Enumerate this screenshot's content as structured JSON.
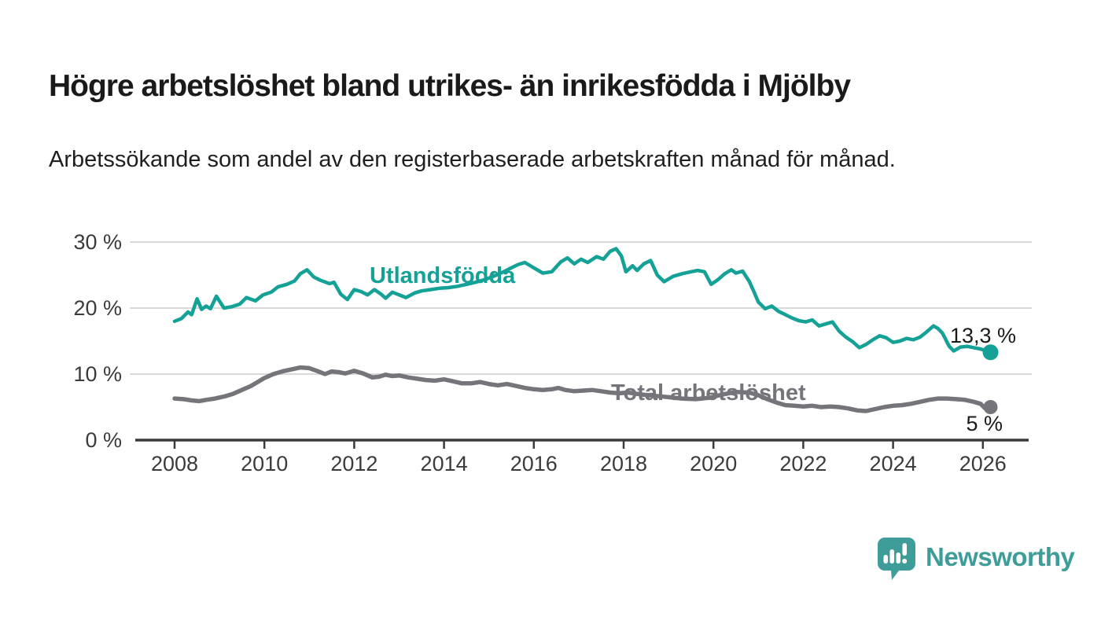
{
  "page": {
    "title": "Högre arbetslöshet bland utrikes- än inrikesfödda i Mjölby",
    "subtitle": "Arbetssökande som andel av den registerbaserade arbetskraften månad för månad."
  },
  "branding": {
    "logo_text": "Newsworthy",
    "logo_color": "#3f9d99",
    "logo_icon": "bar-chart-speech-bubble-icon"
  },
  "chart_data": {
    "type": "line",
    "title": "Arbetssökande som andel av den registerbaserade arbetskraften månad för månad",
    "xlabel": "",
    "ylabel": "",
    "y_unit": "%",
    "xlim": [
      2007.1,
      2027.0
    ],
    "ylim": [
      0,
      32
    ],
    "grid": "horizontal-only",
    "legend_position": "inline-labels-on-lines",
    "axis_color": "#3b3b3b",
    "gridline_color": "#d9d9d9",
    "y_ticks": [
      {
        "value": 0,
        "label": "0 %"
      },
      {
        "value": 10,
        "label": "10 %"
      },
      {
        "value": 20,
        "label": "20 %"
      },
      {
        "value": 30,
        "label": "30 %"
      }
    ],
    "x_ticks": [
      {
        "value": 2008,
        "label": "2008"
      },
      {
        "value": 2010,
        "label": "2010"
      },
      {
        "value": 2012,
        "label": "2012"
      },
      {
        "value": 2014,
        "label": "2014"
      },
      {
        "value": 2016,
        "label": "2016"
      },
      {
        "value": 2018,
        "label": "2018"
      },
      {
        "value": 2020,
        "label": "2020"
      },
      {
        "value": 2022,
        "label": "2022"
      },
      {
        "value": 2024,
        "label": "2024"
      },
      {
        "value": 2026,
        "label": "2026"
      }
    ],
    "series": [
      {
        "name": "Utlandsfödda",
        "color": "#14a196",
        "line_width": 4.5,
        "end_label": "13,3 %",
        "end_value": 13.3,
        "points": [
          [
            2008.0,
            18.0
          ],
          [
            2008.15,
            18.4
          ],
          [
            2008.3,
            19.4
          ],
          [
            2008.38,
            19.0
          ],
          [
            2008.5,
            21.4
          ],
          [
            2008.6,
            19.8
          ],
          [
            2008.7,
            20.3
          ],
          [
            2008.8,
            19.9
          ],
          [
            2008.93,
            21.8
          ],
          [
            2009.1,
            20.0
          ],
          [
            2009.27,
            20.2
          ],
          [
            2009.45,
            20.6
          ],
          [
            2009.6,
            21.6
          ],
          [
            2009.8,
            21.1
          ],
          [
            2009.97,
            22.0
          ],
          [
            2010.15,
            22.4
          ],
          [
            2010.3,
            23.2
          ],
          [
            2010.5,
            23.6
          ],
          [
            2010.67,
            24.1
          ],
          [
            2010.8,
            25.2
          ],
          [
            2010.95,
            25.8
          ],
          [
            2011.1,
            24.7
          ],
          [
            2011.25,
            24.2
          ],
          [
            2011.45,
            23.7
          ],
          [
            2011.55,
            23.9
          ],
          [
            2011.7,
            22.1
          ],
          [
            2011.85,
            21.3
          ],
          [
            2012.0,
            22.8
          ],
          [
            2012.15,
            22.5
          ],
          [
            2012.3,
            22.0
          ],
          [
            2012.45,
            22.8
          ],
          [
            2012.6,
            22.1
          ],
          [
            2012.7,
            21.5
          ],
          [
            2012.85,
            22.4
          ],
          [
            2013.0,
            22.0
          ],
          [
            2013.15,
            21.6
          ],
          [
            2013.35,
            22.3
          ],
          [
            2013.5,
            22.6
          ],
          [
            2013.7,
            22.8
          ],
          [
            2013.9,
            23.0
          ],
          [
            2014.1,
            23.1
          ],
          [
            2014.3,
            23.3
          ],
          [
            2014.5,
            23.6
          ],
          [
            2014.7,
            23.9
          ],
          [
            2014.9,
            24.3
          ],
          [
            2015.1,
            24.8
          ],
          [
            2015.3,
            25.4
          ],
          [
            2015.5,
            26.1
          ],
          [
            2015.65,
            26.6
          ],
          [
            2015.8,
            26.9
          ],
          [
            2016.0,
            26.1
          ],
          [
            2016.2,
            25.3
          ],
          [
            2016.4,
            25.5
          ],
          [
            2016.6,
            27.0
          ],
          [
            2016.75,
            27.6
          ],
          [
            2016.9,
            26.7
          ],
          [
            2017.05,
            27.4
          ],
          [
            2017.2,
            26.9
          ],
          [
            2017.4,
            27.8
          ],
          [
            2017.55,
            27.4
          ],
          [
            2017.7,
            28.6
          ],
          [
            2017.83,
            29.0
          ],
          [
            2017.95,
            27.9
          ],
          [
            2018.05,
            25.5
          ],
          [
            2018.2,
            26.4
          ],
          [
            2018.3,
            25.7
          ],
          [
            2018.45,
            26.7
          ],
          [
            2018.6,
            27.2
          ],
          [
            2018.75,
            25.0
          ],
          [
            2018.9,
            24.0
          ],
          [
            2019.1,
            24.8
          ],
          [
            2019.3,
            25.2
          ],
          [
            2019.5,
            25.5
          ],
          [
            2019.65,
            25.7
          ],
          [
            2019.8,
            25.5
          ],
          [
            2019.95,
            23.6
          ],
          [
            2020.1,
            24.3
          ],
          [
            2020.25,
            25.2
          ],
          [
            2020.4,
            25.8
          ],
          [
            2020.5,
            25.3
          ],
          [
            2020.65,
            25.6
          ],
          [
            2020.8,
            24.0
          ],
          [
            2020.9,
            22.5
          ],
          [
            2021.0,
            20.9
          ],
          [
            2021.15,
            19.9
          ],
          [
            2021.3,
            20.3
          ],
          [
            2021.45,
            19.5
          ],
          [
            2021.6,
            19.0
          ],
          [
            2021.75,
            18.5
          ],
          [
            2021.9,
            18.1
          ],
          [
            2022.05,
            17.9
          ],
          [
            2022.2,
            18.2
          ],
          [
            2022.35,
            17.3
          ],
          [
            2022.5,
            17.6
          ],
          [
            2022.65,
            17.9
          ],
          [
            2022.8,
            16.5
          ],
          [
            2022.95,
            15.6
          ],
          [
            2023.1,
            14.9
          ],
          [
            2023.25,
            14.0
          ],
          [
            2023.4,
            14.5
          ],
          [
            2023.55,
            15.2
          ],
          [
            2023.7,
            15.8
          ],
          [
            2023.85,
            15.5
          ],
          [
            2024.0,
            14.8
          ],
          [
            2024.15,
            15.0
          ],
          [
            2024.3,
            15.4
          ],
          [
            2024.45,
            15.2
          ],
          [
            2024.6,
            15.6
          ],
          [
            2024.75,
            16.4
          ],
          [
            2024.9,
            17.3
          ],
          [
            2025.0,
            16.9
          ],
          [
            2025.1,
            16.2
          ],
          [
            2025.25,
            14.2
          ],
          [
            2025.35,
            13.5
          ],
          [
            2025.5,
            14.1
          ],
          [
            2025.65,
            14.2
          ],
          [
            2025.8,
            14.0
          ],
          [
            2025.95,
            13.8
          ],
          [
            2026.05,
            13.6
          ],
          [
            2026.17,
            13.3
          ]
        ]
      },
      {
        "name": "Total arbetslöshet",
        "color": "#76747b",
        "line_width": 5.5,
        "end_label": "5 %",
        "end_value": 5.0,
        "points": [
          [
            2008.0,
            6.3
          ],
          [
            2008.2,
            6.2
          ],
          [
            2008.4,
            6.0
          ],
          [
            2008.55,
            5.9
          ],
          [
            2008.7,
            6.1
          ],
          [
            2008.9,
            6.3
          ],
          [
            2009.1,
            6.6
          ],
          [
            2009.3,
            7.0
          ],
          [
            2009.5,
            7.6
          ],
          [
            2009.7,
            8.2
          ],
          [
            2009.85,
            8.8
          ],
          [
            2010.0,
            9.4
          ],
          [
            2010.2,
            10.0
          ],
          [
            2010.4,
            10.4
          ],
          [
            2010.6,
            10.7
          ],
          [
            2010.8,
            11.0
          ],
          [
            2011.0,
            10.9
          ],
          [
            2011.2,
            10.4
          ],
          [
            2011.35,
            10.0
          ],
          [
            2011.5,
            10.4
          ],
          [
            2011.65,
            10.3
          ],
          [
            2011.8,
            10.1
          ],
          [
            2012.0,
            10.5
          ],
          [
            2012.2,
            10.1
          ],
          [
            2012.4,
            9.5
          ],
          [
            2012.55,
            9.6
          ],
          [
            2012.7,
            9.9
          ],
          [
            2012.85,
            9.7
          ],
          [
            2013.0,
            9.8
          ],
          [
            2013.2,
            9.5
          ],
          [
            2013.4,
            9.3
          ],
          [
            2013.6,
            9.1
          ],
          [
            2013.8,
            9.0
          ],
          [
            2014.0,
            9.2
          ],
          [
            2014.2,
            8.9
          ],
          [
            2014.4,
            8.6
          ],
          [
            2014.6,
            8.6
          ],
          [
            2014.8,
            8.8
          ],
          [
            2015.0,
            8.5
          ],
          [
            2015.2,
            8.3
          ],
          [
            2015.4,
            8.5
          ],
          [
            2015.6,
            8.2
          ],
          [
            2015.8,
            7.9
          ],
          [
            2016.0,
            7.7
          ],
          [
            2016.2,
            7.6
          ],
          [
            2016.4,
            7.7
          ],
          [
            2016.55,
            7.9
          ],
          [
            2016.7,
            7.6
          ],
          [
            2016.9,
            7.4
          ],
          [
            2017.1,
            7.5
          ],
          [
            2017.3,
            7.6
          ],
          [
            2017.5,
            7.4
          ],
          [
            2017.7,
            7.2
          ],
          [
            2017.9,
            7.1
          ],
          [
            2018.1,
            7.2
          ],
          [
            2018.4,
            6.9
          ],
          [
            2018.7,
            6.7
          ],
          [
            2019.0,
            6.5
          ],
          [
            2019.3,
            6.3
          ],
          [
            2019.6,
            6.2
          ],
          [
            2019.9,
            6.4
          ],
          [
            2020.2,
            6.9
          ],
          [
            2020.5,
            7.3
          ],
          [
            2020.8,
            7.2
          ],
          [
            2021.0,
            6.8
          ],
          [
            2021.2,
            6.2
          ],
          [
            2021.4,
            5.7
          ],
          [
            2021.6,
            5.3
          ],
          [
            2021.8,
            5.2
          ],
          [
            2022.0,
            5.1
          ],
          [
            2022.2,
            5.2
          ],
          [
            2022.4,
            5.0
          ],
          [
            2022.6,
            5.1
          ],
          [
            2022.8,
            5.0
          ],
          [
            2023.0,
            4.8
          ],
          [
            2023.2,
            4.5
          ],
          [
            2023.4,
            4.4
          ],
          [
            2023.6,
            4.7
          ],
          [
            2023.8,
            5.0
          ],
          [
            2024.0,
            5.2
          ],
          [
            2024.2,
            5.3
          ],
          [
            2024.4,
            5.5
          ],
          [
            2024.6,
            5.8
          ],
          [
            2024.8,
            6.1
          ],
          [
            2025.0,
            6.3
          ],
          [
            2025.2,
            6.3
          ],
          [
            2025.4,
            6.2
          ],
          [
            2025.6,
            6.1
          ],
          [
            2025.8,
            5.8
          ],
          [
            2025.95,
            5.5
          ],
          [
            2026.05,
            4.8
          ],
          [
            2026.17,
            5.0
          ]
        ]
      }
    ]
  }
}
